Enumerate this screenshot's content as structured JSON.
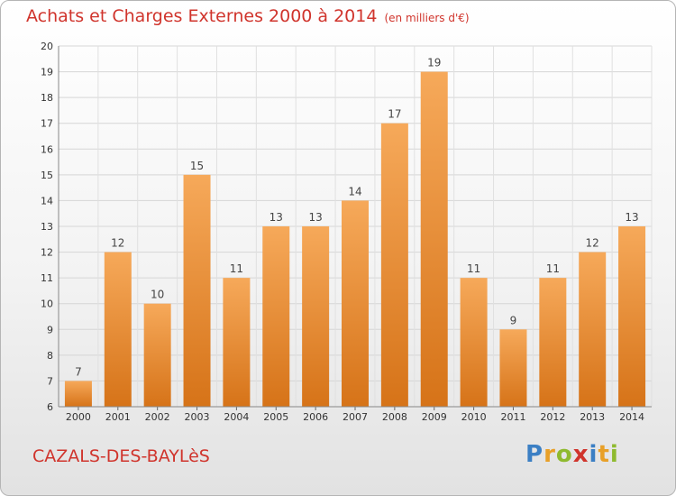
{
  "title": "Achats et Charges Externes 2000 à 2014",
  "unit": "(en milliers d'€)",
  "commune": "CAZALS-DES-BAYLèS",
  "logo": {
    "text": "Proxiti",
    "letters": [
      {
        "ch": "P",
        "color": "#3b7fc4"
      },
      {
        "ch": "r",
        "color": "#e8a028"
      },
      {
        "ch": "o",
        "color": "#8fba2f"
      },
      {
        "ch": "x",
        "color": "#d0342c"
      },
      {
        "ch": "i",
        "color": "#3b7fc4"
      },
      {
        "ch": "t",
        "color": "#e8a028"
      },
      {
        "ch": "i",
        "color": "#8fba2f"
      }
    ]
  },
  "chart_data": {
    "type": "bar",
    "categories": [
      "2000",
      "2001",
      "2002",
      "2003",
      "2004",
      "2005",
      "2006",
      "2007",
      "2008",
      "2009",
      "2010",
      "2011",
      "2012",
      "2013",
      "2014"
    ],
    "values": [
      7,
      12,
      10,
      15,
      11,
      13,
      13,
      14,
      17,
      19,
      11,
      9,
      11,
      12,
      13
    ],
    "ylim": [
      6,
      20
    ],
    "yticks": [
      6,
      7,
      8,
      9,
      10,
      11,
      12,
      13,
      14,
      15,
      16,
      17,
      18,
      19,
      20
    ],
    "grid": true,
    "bar_color_top": "#f6a95a",
    "bar_color_bottom": "#d67318"
  }
}
